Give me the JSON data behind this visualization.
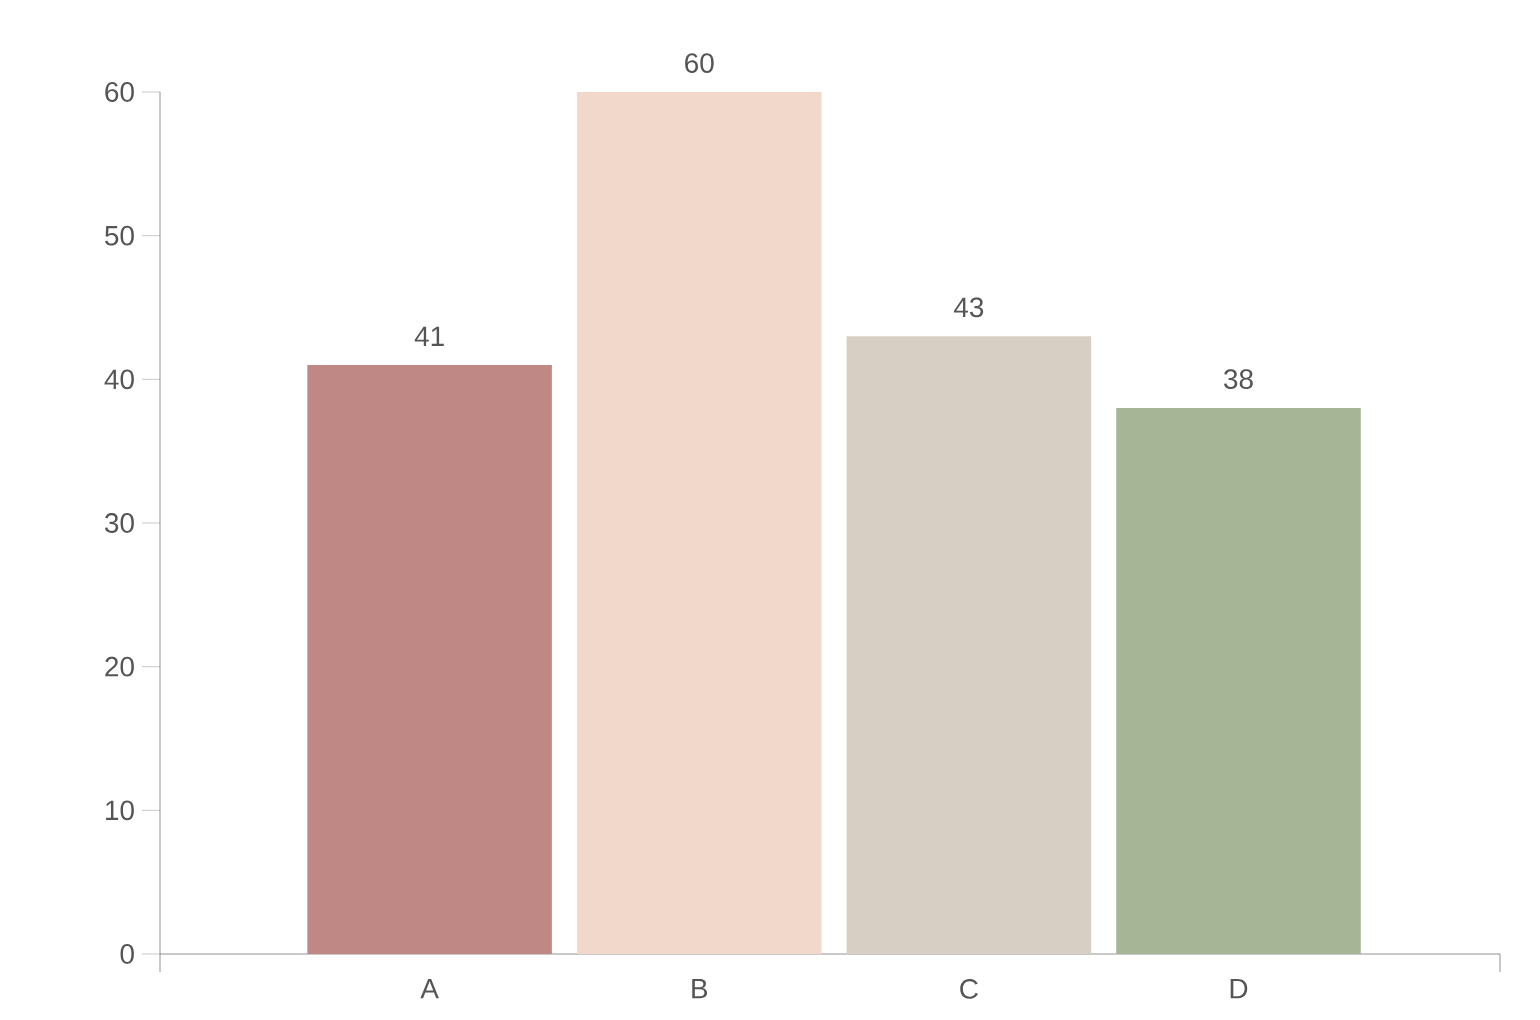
{
  "chart_data": {
    "type": "bar",
    "categories": [
      "A",
      "B",
      "C",
      "D"
    ],
    "values": [
      41,
      60,
      43,
      38
    ],
    "colors": [
      "#bf8885",
      "#f2d7cb",
      "#d8cfc4",
      "#a7b597"
    ],
    "ylim": [
      0,
      60
    ],
    "yticks": [
      0,
      10,
      20,
      30,
      40,
      50,
      60
    ],
    "data_labels": true,
    "grid": false
  }
}
